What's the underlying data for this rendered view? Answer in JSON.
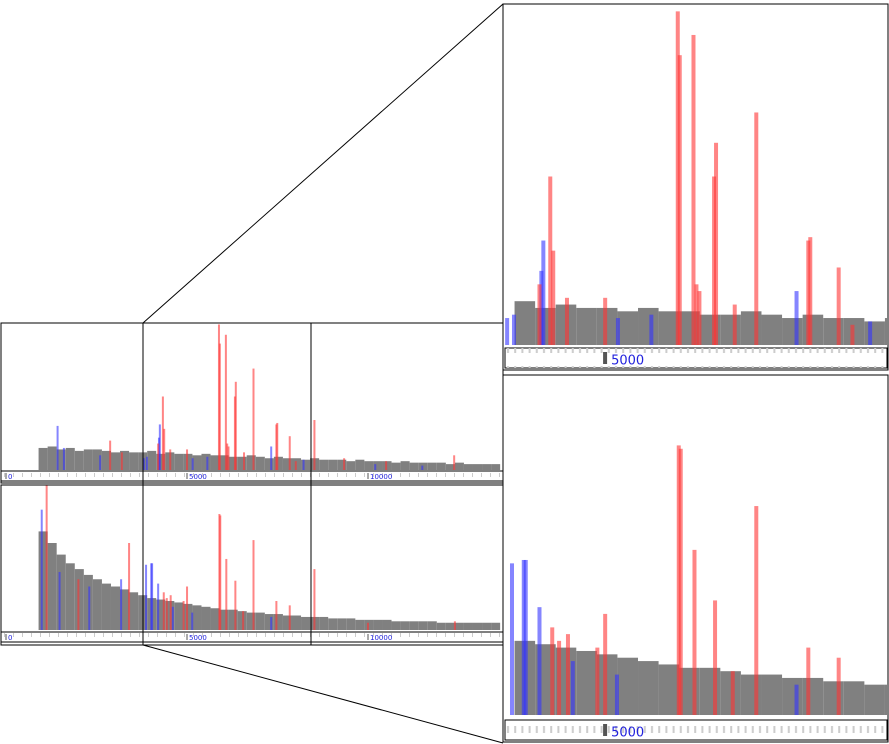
{
  "chart_data": [
    {
      "type": "bar",
      "xlim": [
        -138,
        13729
      ],
      "xticks": [
        0,
        5000,
        10000
      ],
      "ylim": [
        0,
        100
      ],
      "zoom_xlim": [
        3784,
        8425
      ],
      "series": [
        {
          "color": "#808080",
          "x": [
            900,
            1150,
            1400,
            1650,
            1900,
            2150,
            2400,
            2650,
            2900,
            3150,
            3400,
            3650,
            3900,
            4150,
            4400,
            4650,
            4900,
            5150,
            5400,
            5650,
            5900,
            6150,
            6400,
            6650,
            6900,
            7150,
            7400,
            7650,
            7900,
            8150,
            8400,
            8650,
            8900,
            9150,
            9400,
            9650,
            9900,
            10150,
            10400,
            10650,
            10900,
            11150,
            11400,
            11650,
            11900,
            12150,
            12400,
            12650,
            12900,
            13150,
            13400
          ],
          "values": [
            15,
            16,
            14,
            15,
            13,
            14,
            14,
            13,
            12,
            13,
            12,
            12,
            13,
            11,
            12,
            11,
            11,
            10,
            11,
            10,
            10,
            9,
            9,
            10,
            9,
            8,
            9,
            8,
            8,
            7,
            8,
            7,
            7,
            7,
            6,
            7,
            6,
            6,
            6,
            5,
            6,
            5,
            5,
            5,
            5,
            4,
            5,
            4,
            4,
            4,
            4
          ]
        },
        {
          "color": "#3333ff",
          "x": [
            1425,
            1600,
            2600,
            3810,
            3893,
            4226,
            4250,
            5156,
            5562,
            7326,
            8220,
            10200,
            11500
          ],
          "values": [
            30,
            15,
            10,
            8,
            9,
            22,
            31,
            8,
            9,
            16,
            7,
            4,
            3
          ]
        },
        {
          "color": "#ff3333",
          "x": [
            2877,
            3200,
            4203,
            4334,
            4370,
            4537,
            5001,
            5883,
            5907,
            6074,
            6110,
            6146,
            6324,
            6348,
            6575,
            6837,
            7469,
            7493,
            7838,
            8005,
            8520,
            9340,
            10500,
            12380
          ],
          "values": [
            20,
            12,
            18,
            50,
            28,
            14,
            14,
            99,
            86,
            92,
            18,
            16,
            50,
            60,
            12,
            69,
            31,
            32,
            23,
            6,
            34,
            8,
            6,
            10
          ]
        }
      ]
    },
    {
      "type": "bar",
      "xlim": [
        -138,
        13729
      ],
      "xticks": [
        0,
        5000,
        10000
      ],
      "ylim": [
        0,
        100
      ],
      "zoom_xlim": [
        3784,
        8425
      ],
      "series": [
        {
          "color": "#808080",
          "x": [
            900,
            1150,
            1400,
            1650,
            1900,
            2150,
            2400,
            2650,
            2900,
            3150,
            3400,
            3650,
            3900,
            4150,
            4400,
            4650,
            4900,
            5150,
            5400,
            5650,
            5900,
            6150,
            6400,
            6650,
            6900,
            7150,
            7400,
            7650,
            7900,
            8150,
            8400,
            8650,
            8900,
            9150,
            9400,
            9650,
            9900,
            10150,
            10400,
            10650,
            10900,
            11150,
            11400,
            11650,
            11900,
            12150,
            12400,
            12650,
            12900,
            13150,
            13400
          ],
          "values": [
            68,
            60,
            52,
            46,
            42,
            38,
            35,
            32,
            30,
            28,
            26,
            24,
            22,
            21,
            20,
            19,
            18,
            17,
            16,
            15,
            14,
            14,
            13,
            12,
            12,
            11,
            11,
            10,
            10,
            9,
            9,
            9,
            8,
            8,
            8,
            7,
            7,
            7,
            7,
            6,
            6,
            6,
            6,
            6,
            5,
            5,
            5,
            5,
            5,
            5,
            5
          ]
        },
        {
          "color": "#3333ff",
          "x": [
            987,
            1480,
            2300,
            3180,
            3869,
            4012,
            4036,
            4203,
            4608,
            5144,
            7326
          ],
          "values": [
            83,
            40,
            30,
            35,
            45,
            46,
            46,
            32,
            16,
            12,
            9
          ]
        },
        {
          "color": "#ff3333",
          "x": [
            1123,
            2000,
            3400,
            4358,
            4441,
            4549,
            4906,
            5001,
            5895,
            5919,
            6086,
            6336,
            6551,
            6837,
            7469,
            7838,
            8520,
            10000,
            12400
          ],
          "values": [
            100,
            35,
            60,
            26,
            22,
            24,
            20,
            30,
            80,
            79,
            49,
            34,
            13,
            62,
            20,
            17,
            42,
            5,
            6
          ]
        }
      ]
    }
  ]
}
